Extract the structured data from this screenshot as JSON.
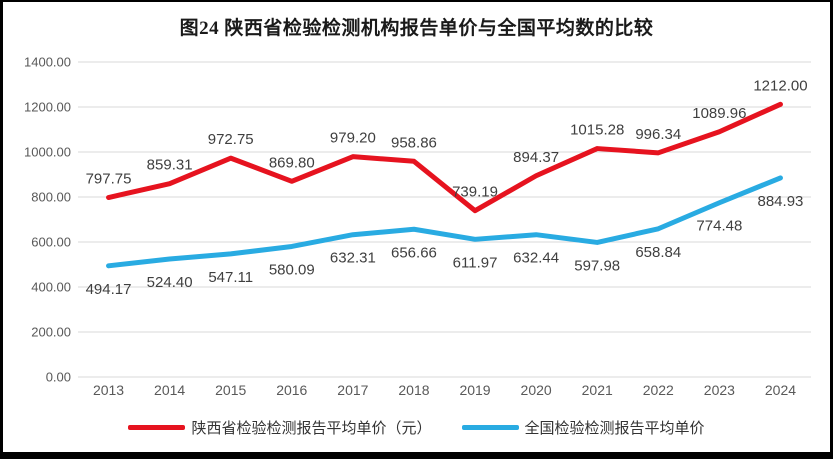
{
  "chart_data": {
    "type": "line",
    "title": "图24 陕西省检验检测机构报告单价与全国平均数的比较",
    "categories": [
      "2013",
      "2014",
      "2015",
      "2016",
      "2017",
      "2018",
      "2019",
      "2020",
      "2021",
      "2022",
      "2023",
      "2024"
    ],
    "series": [
      {
        "name": "陕西省检验检测报告平均单价（元）",
        "color": "#e6131f",
        "label_position": "above",
        "values": [
          797.75,
          859.31,
          972.75,
          869.8,
          979.2,
          958.86,
          739.19,
          894.37,
          1015.28,
          996.34,
          1089.96,
          1212.0
        ]
      },
      {
        "name": "全国检验检测报告平均单价",
        "color": "#29abe2",
        "label_position": "below",
        "values": [
          494.17,
          524.4,
          547.11,
          580.09,
          632.31,
          656.66,
          611.97,
          632.44,
          597.98,
          658.84,
          774.48,
          884.93
        ]
      }
    ],
    "ylim": [
      0,
      1400
    ],
    "ytick_step": 200,
    "ytick_labels": [
      "0.00",
      "200.00",
      "400.00",
      "600.00",
      "800.00",
      "1000.00",
      "1200.00",
      "1400.00"
    ],
    "grid": true,
    "legend_position": "bottom",
    "colors": {
      "grid": "#d9d9d9",
      "axis_text": "#595959",
      "data_label": "#3f3f3f",
      "title_text": "#1a1a1a"
    }
  }
}
